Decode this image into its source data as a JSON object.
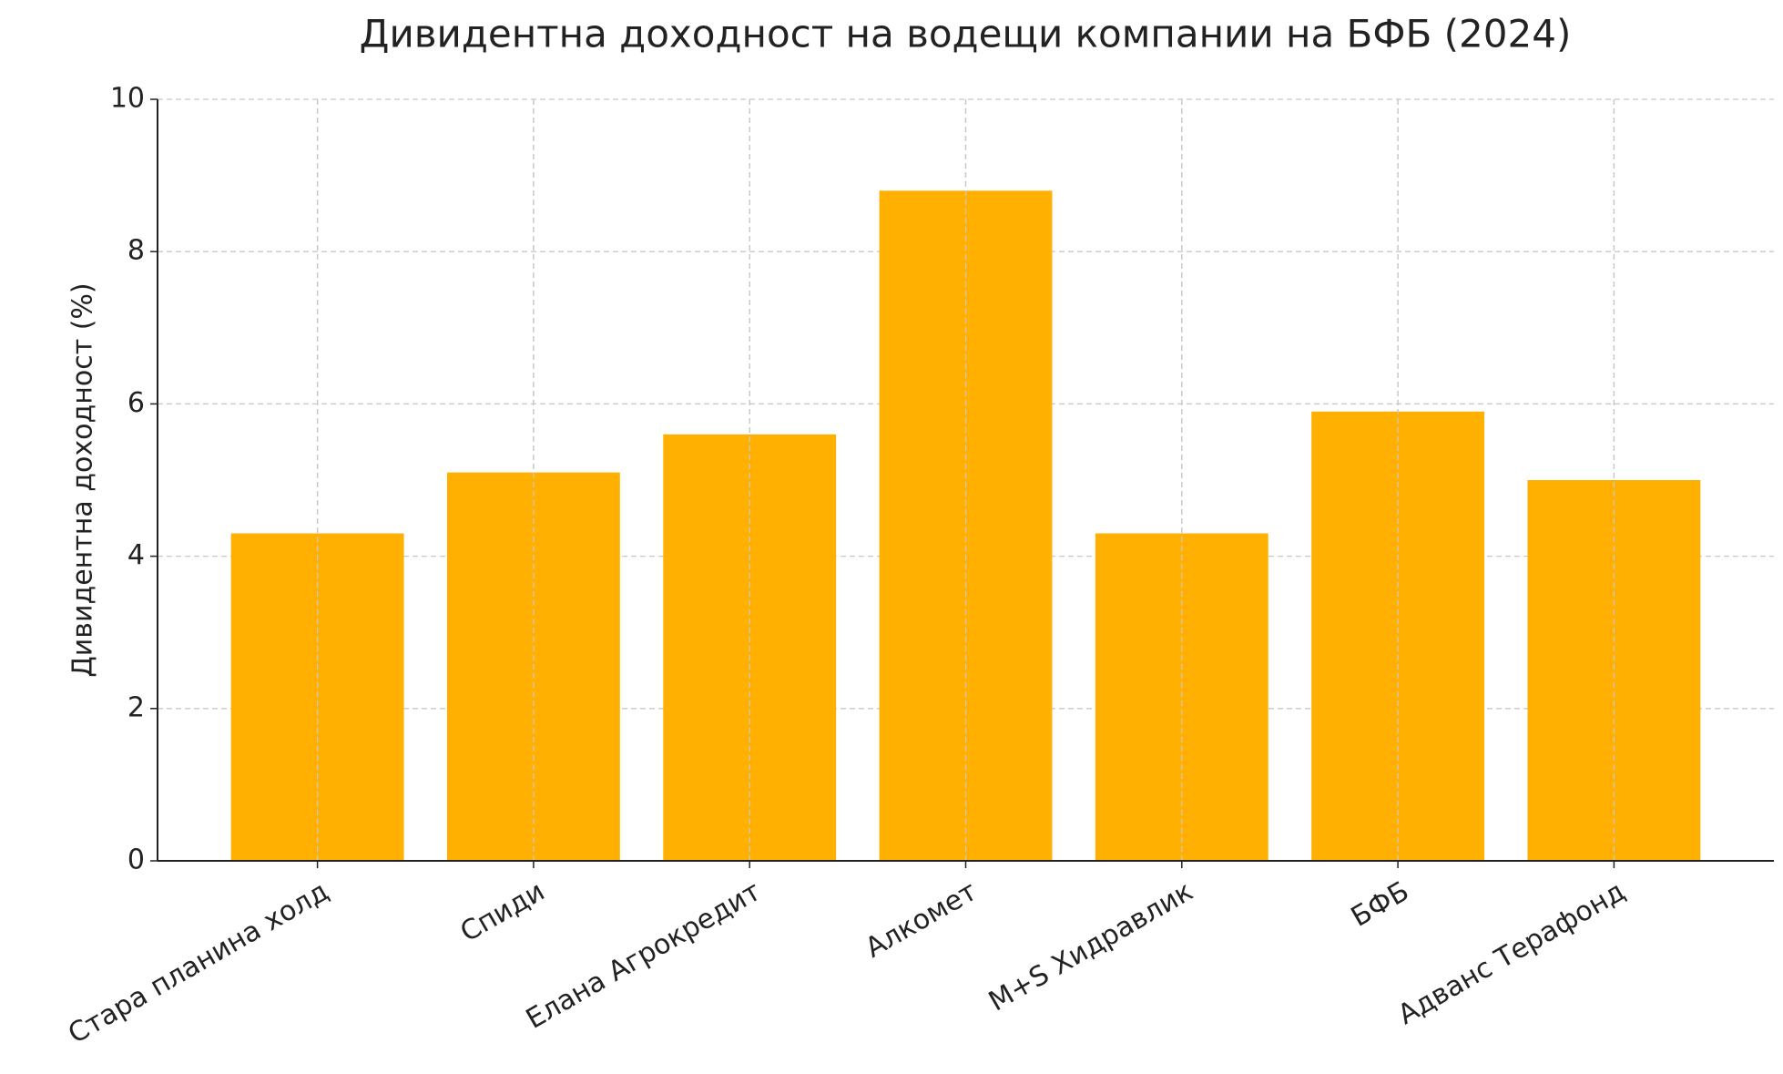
{
  "chart_data": {
    "type": "bar",
    "title": "Дивидентна доходност на водещи компании на БФБ (2024)",
    "y_label": "Дивидентна доходност (%)",
    "categories": [
      "Стара планина холд",
      "Спиди",
      "Елана Агрокредит",
      "Алкомет",
      "M+S Хидравлик",
      "БФБ",
      "Адванс Терафонд"
    ],
    "values": [
      4.3,
      5.1,
      5.6,
      8.8,
      4.3,
      5.9,
      5.0
    ],
    "color": "#ffb000",
    "ylim": [
      0,
      10
    ],
    "yticks": [
      0,
      2,
      4,
      6,
      8,
      10
    ],
    "grid": true
  }
}
